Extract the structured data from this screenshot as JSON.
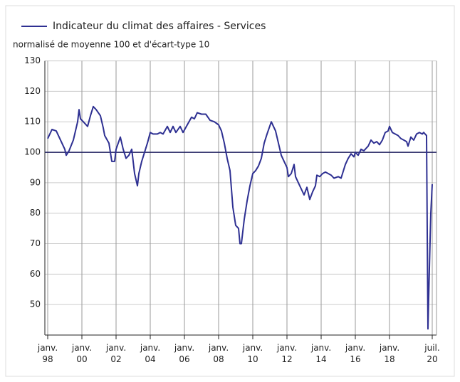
{
  "chart_data": {
    "type": "line",
    "subtitle": "normalisé de moyenne 100 et d'écart-type 10",
    "series": [
      {
        "name": "Indicateur du climat des affaires - Services",
        "color": "#2e3092",
        "x": [
          "1998-01",
          "1998-04",
          "1998-07",
          "1998-10",
          "1999-01",
          "1999-02",
          "1999-04",
          "1999-07",
          "1999-10",
          "1999-11",
          "1999-12",
          "2000-02",
          "2000-05",
          "2000-07",
          "2000-09",
          "2000-11",
          "2001-02",
          "2001-04",
          "2001-05",
          "2001-08",
          "2001-10",
          "2001-12",
          "2002-01",
          "2002-04",
          "2002-06",
          "2002-08",
          "2002-10",
          "2002-12",
          "2003-02",
          "2003-04",
          "2003-05",
          "2003-07",
          "2003-09",
          "2003-11",
          "2004-01",
          "2004-03",
          "2004-06",
          "2004-08",
          "2004-10",
          "2005-01",
          "2005-03",
          "2005-05",
          "2005-07",
          "2005-10",
          "2005-12",
          "2006-03",
          "2006-06",
          "2006-08",
          "2006-10",
          "2007-01",
          "2007-04",
          "2007-07",
          "2007-10",
          "2008-01",
          "2008-03",
          "2008-05",
          "2008-07",
          "2008-09",
          "2008-11",
          "2009-01",
          "2009-03",
          "2009-04",
          "2009-05",
          "2009-07",
          "2009-09",
          "2009-11",
          "2010-01",
          "2010-03",
          "2010-05",
          "2010-07",
          "2010-09",
          "2010-11",
          "2011-02",
          "2011-05",
          "2011-07",
          "2011-09",
          "2011-11",
          "2012-01",
          "2012-02",
          "2012-04",
          "2012-06",
          "2012-07",
          "2012-09",
          "2012-11",
          "2013-01",
          "2013-03",
          "2013-05",
          "2013-07",
          "2013-09",
          "2013-10",
          "2013-12",
          "2014-02",
          "2014-04",
          "2014-06",
          "2014-08",
          "2014-10",
          "2015-01",
          "2015-03",
          "2015-06",
          "2015-08",
          "2015-10",
          "2015-12",
          "2016-01",
          "2016-03",
          "2016-05",
          "2016-07",
          "2016-09",
          "2016-10",
          "2016-12",
          "2017-02",
          "2017-04",
          "2017-06",
          "2017-08",
          "2017-10",
          "2017-12",
          "2018-01",
          "2018-03",
          "2018-05",
          "2018-07",
          "2018-09",
          "2018-11",
          "2019-01",
          "2019-02",
          "2019-04",
          "2019-06",
          "2019-08",
          "2019-10",
          "2019-12",
          "2020-01",
          "2020-02",
          "2020-03",
          "2020-04",
          "2020-05",
          "2020-06",
          "2020-07"
        ],
        "values": [
          104.5,
          107.5,
          107,
          104,
          101,
          99,
          100.5,
          104,
          110,
          114,
          111,
          110,
          108.5,
          112,
          115,
          114,
          112,
          108,
          105.5,
          103,
          97,
          97,
          101,
          105,
          101,
          98,
          99,
          101,
          93,
          89,
          93,
          97,
          100,
          103,
          106.5,
          106,
          106,
          106.5,
          106,
          108.5,
          106.5,
          108.5,
          106.5,
          108.5,
          106.5,
          109,
          111.5,
          111,
          113,
          112.5,
          112.5,
          110.5,
          110,
          109,
          107,
          103,
          98,
          94,
          82,
          76,
          75,
          70,
          70,
          78,
          84,
          89,
          93,
          94,
          95.5,
          98,
          103,
          106,
          110,
          107,
          103,
          99,
          97,
          95,
          92,
          93,
          96,
          92,
          90,
          88,
          86,
          88.5,
          84.5,
          87,
          89,
          92.5,
          92,
          93,
          93.5,
          93,
          92.5,
          91.5,
          92,
          91.5,
          96,
          98,
          99.5,
          98.5,
          100,
          99,
          101,
          100.5,
          101.5,
          102,
          104,
          103,
          103.5,
          102.5,
          104,
          106.5,
          107,
          108.5,
          106.5,
          106,
          105.5,
          104.5,
          104,
          103.5,
          102,
          105,
          104,
          106,
          106.5,
          106,
          106.5,
          106,
          105.5,
          42,
          62,
          80,
          89.5
        ]
      }
    ],
    "xlim": [
      "1997-11",
      "2020-10"
    ],
    "xticks": [
      {
        "value": "1998-01",
        "label": "janv. 98"
      },
      {
        "value": "2000-01",
        "label": "janv. 00"
      },
      {
        "value": "2002-01",
        "label": "janv. 02"
      },
      {
        "value": "2004-01",
        "label": "janv. 04"
      },
      {
        "value": "2006-01",
        "label": "janv. 06"
      },
      {
        "value": "2008-01",
        "label": "janv. 08"
      },
      {
        "value": "2010-01",
        "label": "janv. 10"
      },
      {
        "value": "2012-01",
        "label": "janv. 12"
      },
      {
        "value": "2014-01",
        "label": "janv. 14"
      },
      {
        "value": "2016-01",
        "label": "janv. 16"
      },
      {
        "value": "2018-01",
        "label": "janv. 18"
      },
      {
        "value": "2020-07",
        "label": "juil. 20"
      }
    ],
    "ylim": [
      40,
      130
    ],
    "yticks": [
      50,
      60,
      70,
      80,
      90,
      100,
      110,
      120,
      130
    ],
    "reference_line": 100,
    "grid": true
  }
}
